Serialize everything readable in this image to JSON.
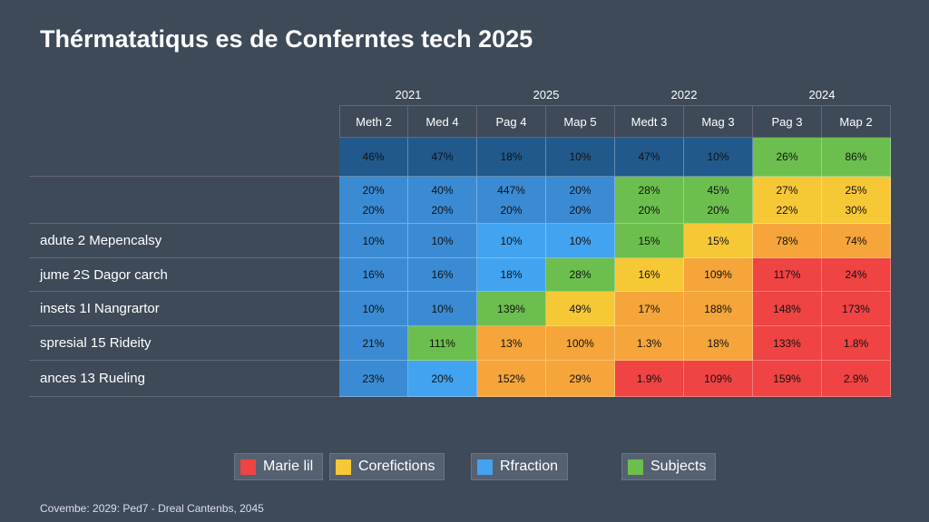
{
  "header": {
    "title": "Thérmatatiqus es de Conferntes tech 2025"
  },
  "table": {
    "groups": [
      {
        "label": "2021",
        "span": 2
      },
      {
        "label": "2025",
        "span": 2
      },
      {
        "label": "2022",
        "span": 2
      },
      {
        "label": "2024",
        "span": 2
      }
    ],
    "columns": [
      "Meth 2",
      "Med 4",
      "Pag 4",
      "Map 5",
      "Medt 3",
      "Mag 3",
      "Pag 3",
      "Map 2"
    ],
    "rows": [
      {
        "cells": [
          {
            "lines": [
              "46%"
            ],
            "color": "#22598c"
          },
          {
            "lines": [
              "47%"
            ],
            "color": "#22598c"
          },
          {
            "lines": [
              "18%"
            ],
            "color": "#22598c"
          },
          {
            "lines": [
              "10%"
            ],
            "color": "#22598c"
          },
          {
            "lines": [
              "47%"
            ],
            "color": "#22598c"
          },
          {
            "lines": [
              "10%"
            ],
            "color": "#22598c"
          },
          {
            "lines": [
              "26%"
            ],
            "color": "#6cbf4e"
          },
          {
            "lines": [
              "86%"
            ],
            "color": "#6cbf4e"
          }
        ]
      },
      {
        "cells": [
          {
            "lines": [
              "20%",
              "20%"
            ],
            "color": "#3b8bd4"
          },
          {
            "lines": [
              "40%",
              "20%"
            ],
            "color": "#3b8bd4"
          },
          {
            "lines": [
              "447%",
              "20%"
            ],
            "color": "#3b8bd4"
          },
          {
            "lines": [
              "20%",
              "20%"
            ],
            "color": "#3b8bd4"
          },
          {
            "lines": [
              "28%",
              "20%"
            ],
            "color": "#6cbf4e"
          },
          {
            "lines": [
              "45%",
              "20%"
            ],
            "color": "#6cbf4e"
          },
          {
            "lines": [
              "27%",
              "22%"
            ],
            "color": "#f7c836"
          },
          {
            "lines": [
              "25%",
              "30%"
            ],
            "color": "#f7c836"
          }
        ]
      },
      {
        "label": "adute 2 Mepencalsy",
        "cells": [
          {
            "lines": [
              "10%"
            ],
            "color": "#3b8bd4"
          },
          {
            "lines": [
              "10%"
            ],
            "color": "#3b8bd4"
          },
          {
            "lines": [
              "10%"
            ],
            "color": "#42a3f0"
          },
          {
            "lines": [
              "10%"
            ],
            "color": "#42a3f0"
          },
          {
            "lines": [
              "15%"
            ],
            "color": "#6cbf4e"
          },
          {
            "lines": [
              "15%"
            ],
            "color": "#f7c836"
          },
          {
            "lines": [
              "78%"
            ],
            "color": "#f5a53a"
          },
          {
            "lines": [
              "74%"
            ],
            "color": "#f5a53a"
          }
        ]
      },
      {
        "label": "jume 2S Dagor carch",
        "cells": [
          {
            "lines": [
              "16%"
            ],
            "color": "#3b8bd4"
          },
          {
            "lines": [
              "16%"
            ],
            "color": "#3b8bd4"
          },
          {
            "lines": [
              "18%"
            ],
            "color": "#42a3f0"
          },
          {
            "lines": [
              "28%"
            ],
            "color": "#6cbf4e"
          },
          {
            "lines": [
              "16%"
            ],
            "color": "#f7c836"
          },
          {
            "lines": [
              "109%"
            ],
            "color": "#f5a53a"
          },
          {
            "lines": [
              "117%"
            ],
            "color": "#f04343"
          },
          {
            "lines": [
              "24%"
            ],
            "color": "#f04343"
          }
        ]
      },
      {
        "label": "insets 1I Nangrartor",
        "cells": [
          {
            "lines": [
              "10%"
            ],
            "color": "#3b8bd4"
          },
          {
            "lines": [
              "10%"
            ],
            "color": "#3b8bd4"
          },
          {
            "lines": [
              "139%"
            ],
            "color": "#6cbf4e"
          },
          {
            "lines": [
              "49%"
            ],
            "color": "#f7c836"
          },
          {
            "lines": [
              "17%"
            ],
            "color": "#f5a53a"
          },
          {
            "lines": [
              "188%"
            ],
            "color": "#f5a53a"
          },
          {
            "lines": [
              "148%"
            ],
            "color": "#f04343"
          },
          {
            "lines": [
              "173%"
            ],
            "color": "#f04343"
          }
        ]
      },
      {
        "label": "spresial 15 Rideity",
        "cells": [
          {
            "lines": [
              "21%"
            ],
            "color": "#3b8bd4"
          },
          {
            "lines": [
              "111%"
            ],
            "color": "#6cbf4e"
          },
          {
            "lines": [
              "13%"
            ],
            "color": "#f5a53a"
          },
          {
            "lines": [
              "100%"
            ],
            "color": "#f5a53a"
          },
          {
            "lines": [
              "1.3%"
            ],
            "color": "#f5a53a"
          },
          {
            "lines": [
              "18%"
            ],
            "color": "#f5a53a"
          },
          {
            "lines": [
              "133%"
            ],
            "color": "#f04343"
          },
          {
            "lines": [
              "1.8%"
            ],
            "color": "#f04343"
          }
        ]
      },
      {
        "label": "ances 13 Rueling",
        "cells": [
          {
            "lines": [
              "23%"
            ],
            "color": "#3b8bd4"
          },
          {
            "lines": [
              "20%"
            ],
            "color": "#42a3f0"
          },
          {
            "lines": [
              "152%"
            ],
            "color": "#f5a53a"
          },
          {
            "lines": [
              "29%"
            ],
            "color": "#f5a53a"
          },
          {
            "lines": [
              "1.9%"
            ],
            "color": "#f04343"
          },
          {
            "lines": [
              "109%"
            ],
            "color": "#f04343"
          },
          {
            "lines": [
              "159%"
            ],
            "color": "#f04343"
          },
          {
            "lines": [
              "2.9%"
            ],
            "color": "#f04343"
          }
        ]
      }
    ]
  },
  "legend": [
    {
      "label": "Marie lil",
      "color": "#f04343"
    },
    {
      "label": "Corefictions",
      "color": "#f7c836"
    },
    {
      "label": "Rfraction",
      "color": "#42a3f0"
    },
    {
      "label": "Subjects",
      "color": "#6cbf4e"
    }
  ],
  "footer": "Covembe: 2029: Ped7 - Dreal Cantenbs, 2045"
}
